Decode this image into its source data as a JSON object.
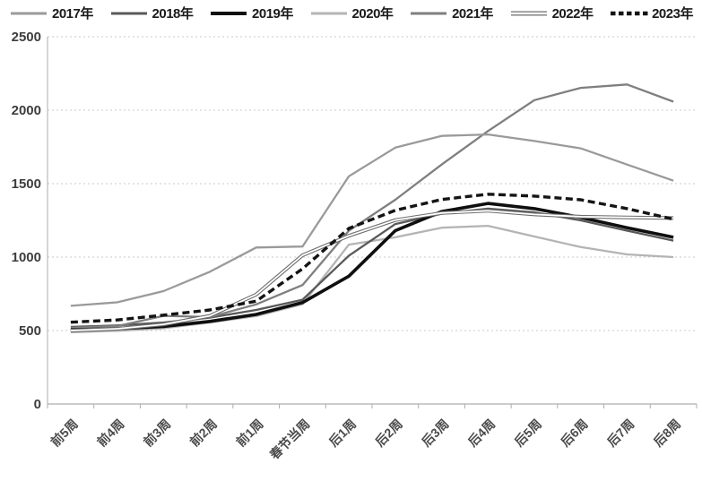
{
  "figure": {
    "background": "#ffffff"
  },
  "chart_data": {
    "type": "line",
    "title": "",
    "xlabel": "",
    "ylabel": "",
    "legend_position": "top",
    "grid": {
      "horizontal": true,
      "style": "dotted",
      "color": "#c8c8c8"
    },
    "axis_color": "#adadad",
    "text_color": "#3d3d3d",
    "x_tick_rotation_deg": -45,
    "categories": [
      "前5周",
      "前4周",
      "前3周",
      "前2周",
      "前1周",
      "春节当周",
      "后1周",
      "后2周",
      "后3周",
      "后4周",
      "后5周",
      "后6周",
      "后7周",
      "后8周"
    ],
    "y_axis": {
      "min": 0,
      "max": 2500,
      "step": 500,
      "tick_labels": [
        "0",
        "500",
        "1000",
        "1500",
        "2000",
        "2500"
      ]
    },
    "series": [
      {
        "name": "2017年",
        "color": "#9a9a9a",
        "style": "solid",
        "width": 2.3,
        "values": [
          668,
          692,
          768,
          900,
          1065,
          1072,
          1550,
          1745,
          1825,
          1835,
          1790,
          1740,
          1630,
          1520
        ]
      },
      {
        "name": "2018年",
        "color": "#595959",
        "style": "solid",
        "width": 2.3,
        "values": [
          525,
          535,
          555,
          588,
          640,
          710,
          1010,
          1225,
          1295,
          1330,
          1305,
          1250,
          1180,
          1112
        ]
      },
      {
        "name": "2019年",
        "color": "#0f0f0f",
        "style": "solid",
        "width": 3.6,
        "values": [
          505,
          512,
          528,
          562,
          610,
          690,
          870,
          1180,
          1310,
          1365,
          1330,
          1270,
          1200,
          1135
        ]
      },
      {
        "name": "2020年",
        "color": "#b4b4b4",
        "style": "solid",
        "width": 2.3,
        "values": [
          488,
          498,
          515,
          555,
          598,
          680,
          1085,
          1135,
          1200,
          1213,
          1140,
          1068,
          1018,
          1000
        ]
      },
      {
        "name": "2021年",
        "color": "#7f7f7f",
        "style": "solid",
        "width": 2.3,
        "values": [
          518,
          530,
          600,
          592,
          678,
          810,
          1180,
          1390,
          1630,
          1858,
          2068,
          2152,
          2175,
          2058
        ]
      },
      {
        "name": "2022年",
        "color": "#6e6e6e",
        "style": "double",
        "core_color": "#ffffff",
        "width": 4,
        "values": [
          500,
          512,
          542,
          600,
          745,
          1012,
          1145,
          1252,
          1300,
          1315,
          1290,
          1275,
          1270,
          1266
        ]
      },
      {
        "name": "2023年",
        "color": "#141414",
        "style": "dashed",
        "width": 3.4,
        "values": [
          557,
          572,
          605,
          640,
          700,
          920,
          1195,
          1318,
          1392,
          1428,
          1415,
          1390,
          1330,
          1258
        ]
      }
    ]
  }
}
